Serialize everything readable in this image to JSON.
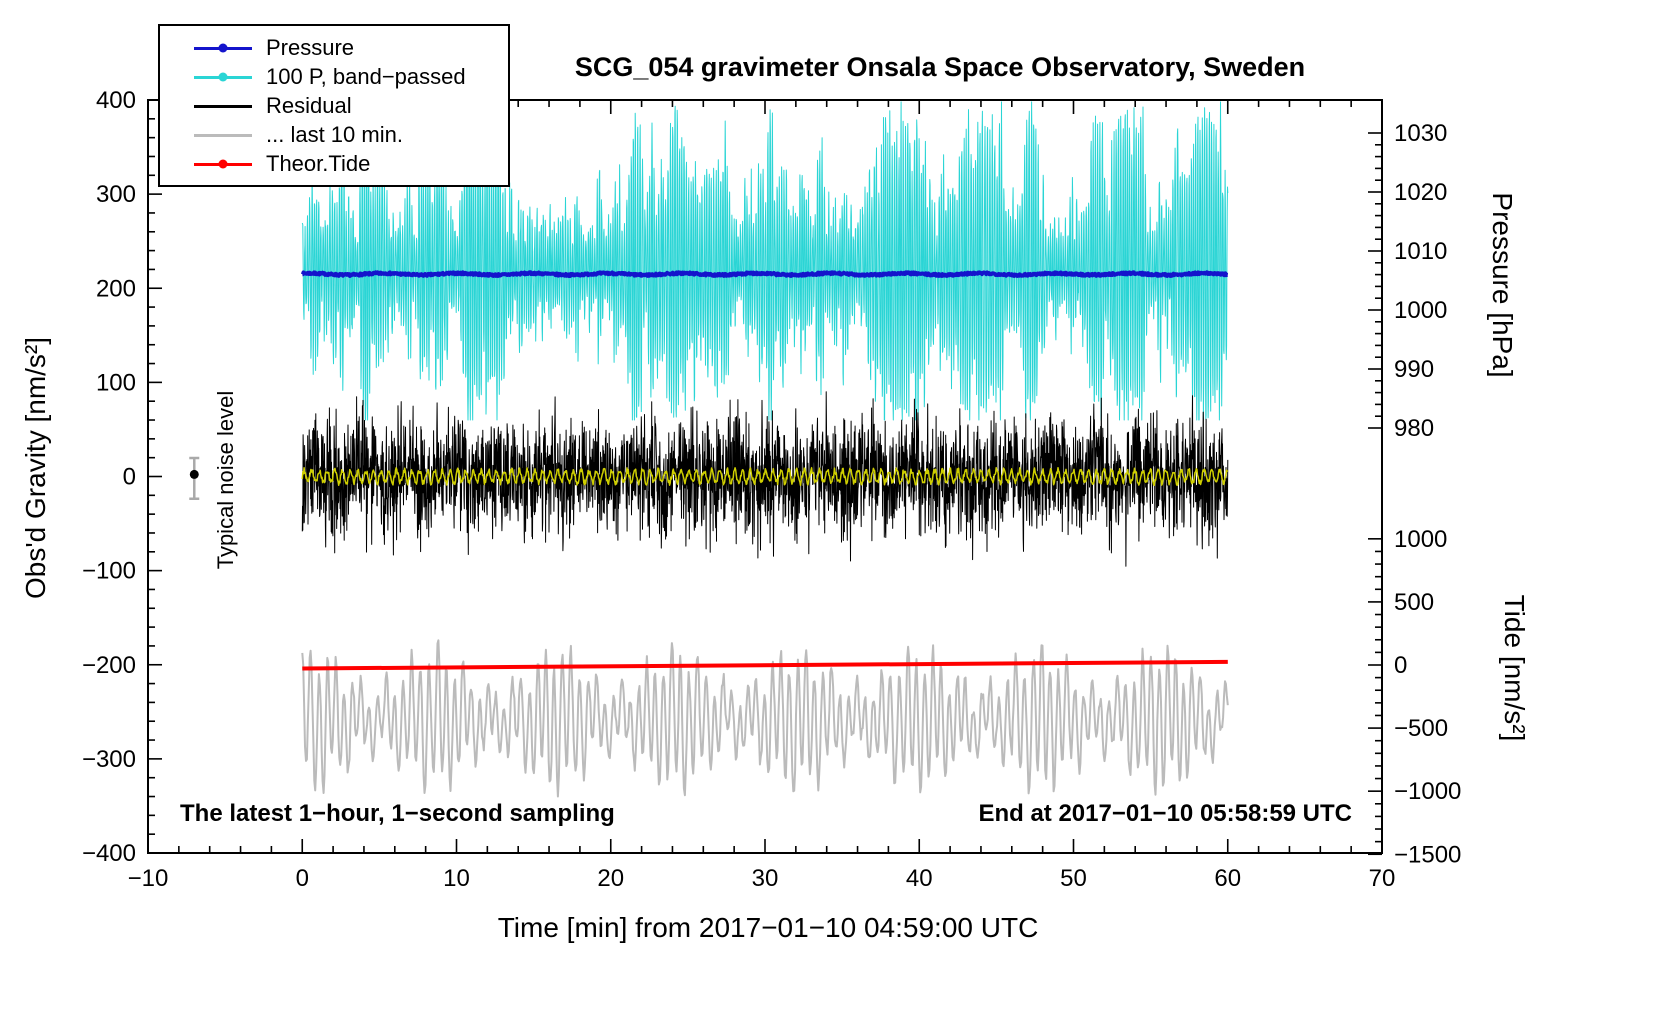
{
  "title": "SCG_054 gravimeter Onsala Space Observatory, Sweden",
  "annotations": {
    "noise_label": "Typical noise level",
    "sampling_note": "The latest 1−hour, 1−second sampling",
    "end_note": "End at 2017−01−10 05:58:59 UTC"
  },
  "chart_data": {
    "type": "line",
    "title": "SCG_054 gravimeter Onsala Space Observatory, Sweden",
    "xlabel": "Time [min] from 2017−01−10 04:59:00 UTC",
    "legend_position": "top-left",
    "grid": false,
    "axes": {
      "x": {
        "label": "Time [min] from 2017−01−10 04:59:00 UTC",
        "min": -10,
        "max": 70,
        "major_ticks": [
          -10,
          0,
          10,
          20,
          30,
          40,
          50,
          60,
          70
        ],
        "minor_step": 2
      },
      "gravity": {
        "label": "Obs'd Gravity [nm/s²]",
        "min": -400,
        "max": 400,
        "major_ticks": [
          -400,
          -300,
          -200,
          -100,
          0,
          100,
          200,
          300,
          400
        ],
        "minor_step": 20
      },
      "pressure": {
        "label": "Pressure [hPa]",
        "min": 980,
        "max": 1030,
        "ticks": [
          980,
          990,
          1000,
          1010,
          1020,
          1030
        ],
        "minor_step": 2
      },
      "tide": {
        "label": "Tide [nm/s²]",
        "min": -1500,
        "max": 1000,
        "ticks": [
          -1500,
          -1000,
          -500,
          0,
          500,
          1000
        ],
        "minor_step": 100
      }
    },
    "series": [
      {
        "id": "pressure",
        "label": "Pressure",
        "color": "#1414cc",
        "marker": "line-dot",
        "axis": "pressure",
        "units": "hPa",
        "mean_native": 1005.5,
        "gravity_mean": 215,
        "noise_amp": 2,
        "x_start_min": 0,
        "x_end_min": 60,
        "n": 1500,
        "seed": 7,
        "width": 4
      },
      {
        "id": "pressure-bandpassed",
        "label": "100 P, band−passed",
        "color": "#2ad5d5",
        "marker": "line-dot",
        "axis": "gravity",
        "gravity_mean": 220,
        "envelope_min": 60,
        "envelope_max": 398,
        "x_start_min": 0,
        "x_end_min": 60,
        "n": 3200,
        "seed": 13,
        "width": 1
      },
      {
        "id": "residual",
        "label": "Residual",
        "color": "#000000",
        "marker": "line",
        "axis": "gravity",
        "gravity_mean": 0,
        "typical_range": [
          -100,
          100
        ],
        "extremes": [
          -130,
          140
        ],
        "x_start_min": 0,
        "x_end_min": 60,
        "n": 3200,
        "seed": 29,
        "width": 1
      },
      {
        "id": "residual-last-10-min",
        "label": "... last 10 min.",
        "color": "#bbbbbb",
        "marker": "line",
        "axis": "tide",
        "gravity_mean": -258,
        "gravity_range": [
          -345,
          -155
        ],
        "tide_native_range": [
          -1080,
          320
        ],
        "x_start_min": 0,
        "x_end_min": 60,
        "n": 1000,
        "seed": 41,
        "width": 2
      },
      {
        "id": "theor-tide",
        "label": "Theor.Tide",
        "color": "#ff0000",
        "marker": "line-dot",
        "axis": "tide",
        "points_gravity": [
          [
            0,
            -204
          ],
          [
            60,
            -197
          ]
        ],
        "tide_native_approx": [
          -30,
          25
        ],
        "width": 4
      },
      {
        "id": "smoothed-residual",
        "label": "",
        "color": "#cfcf00",
        "marker": "line",
        "axis": "gravity",
        "gravity_mean": 0,
        "amp": 7,
        "x_start_min": 0,
        "x_end_min": 60,
        "n": 1500,
        "seed": 53,
        "width": 1.5
      }
    ],
    "noise_marker": {
      "x_min": -7,
      "gravity": -2,
      "error": 23,
      "bar_color": "#a9a9a9",
      "dot_color": "#000000"
    }
  }
}
